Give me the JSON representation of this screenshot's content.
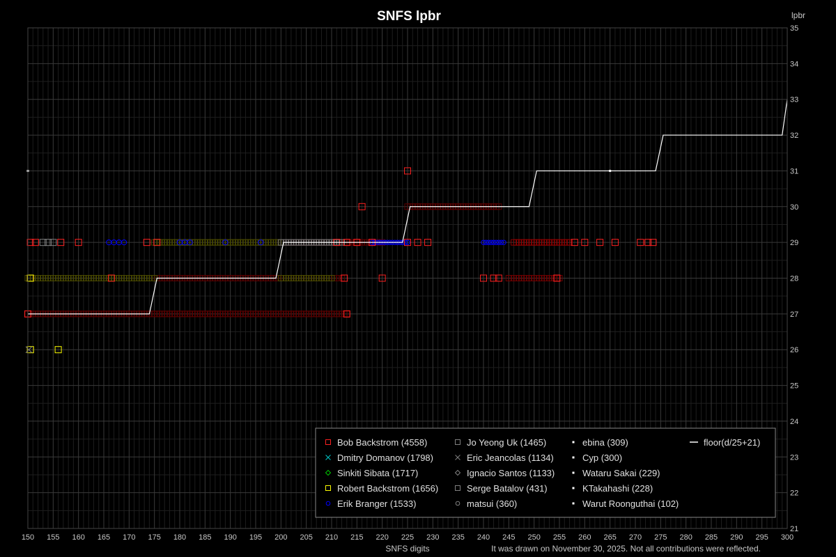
{
  "chart_data": {
    "type": "scatter",
    "title": "SNFS lpbr",
    "xlabel": "SNFS digits",
    "ylabel": "lpbr",
    "footnote": "It was drawn on November 30, 2025. Not all contributions were reflected.",
    "xlim": [
      150,
      300
    ],
    "ylim": [
      21,
      35
    ],
    "x_ticks": [
      150,
      155,
      160,
      165,
      170,
      175,
      180,
      185,
      190,
      195,
      200,
      205,
      210,
      215,
      220,
      225,
      230,
      235,
      240,
      245,
      250,
      255,
      260,
      265,
      270,
      275,
      280,
      285,
      290,
      295,
      300
    ],
    "y_ticks": [
      21,
      22,
      23,
      24,
      25,
      26,
      27,
      28,
      29,
      30,
      31,
      32,
      33,
      34,
      35
    ],
    "grid": true,
    "legend_position": "bottom-right",
    "colors": {
      "background": "#000000",
      "grid_major": "#3a3a3a",
      "grid_minor": "#1e1e1e",
      "dark_red": "#5a0000",
      "olive": "#4a4a00",
      "blue": "#0000ff",
      "white": "#ffffff"
    },
    "series": [
      {
        "name": "Bob Backstrom (4558)",
        "marker": "square",
        "color": "#ff2020",
        "ranges": [
          {
            "y": 27,
            "x": [
              150,
              213
            ],
            "color": "#5a0000"
          },
          {
            "y": 28,
            "x": [
              175,
              212
            ],
            "color": "#5a0000"
          },
          {
            "y": 28,
            "x": [
              245,
              255
            ],
            "color": "#700000"
          },
          {
            "y": 29,
            "x": [
              200,
              220
            ],
            "color": "#5a0000"
          },
          {
            "y": 29,
            "x": [
              246,
              257
            ],
            "color": "#900000"
          },
          {
            "y": 30,
            "x": [
              225,
              243
            ],
            "color": "#5a0000"
          }
        ],
        "points": [
          [
            150.5,
            29
          ],
          [
            151.5,
            29
          ],
          [
            156.5,
            29
          ],
          [
            160,
            29
          ],
          [
            173.5,
            29
          ],
          [
            175.5,
            29
          ],
          [
            166.5,
            28
          ],
          [
            150.5,
            28
          ],
          [
            212.5,
            28
          ],
          [
            220,
            28
          ],
          [
            240,
            28
          ],
          [
            242,
            28
          ],
          [
            243,
            28
          ],
          [
            254.5,
            28
          ],
          [
            211,
            29
          ],
          [
            213,
            29
          ],
          [
            215,
            29
          ],
          [
            218,
            29
          ],
          [
            225,
            29
          ],
          [
            227,
            29
          ],
          [
            229,
            29
          ],
          [
            258,
            29
          ],
          [
            260,
            29
          ],
          [
            263,
            29
          ],
          [
            266,
            29
          ],
          [
            271,
            29
          ],
          [
            272.5,
            29
          ],
          [
            273.5,
            29
          ],
          [
            216,
            30
          ],
          [
            225,
            31
          ],
          [
            150,
            27
          ],
          [
            213,
            27
          ]
        ]
      },
      {
        "name": "Dmitry Domanov (1798)",
        "marker": "x",
        "color": "#00c8c8",
        "points": []
      },
      {
        "name": "Sinkiti Sibata (1717)",
        "marker": "diamond",
        "color": "#00c800",
        "points": []
      },
      {
        "name": "Robert Backstrom (1656)",
        "marker": "square",
        "color": "#ffff00",
        "ranges": [
          {
            "y": 28,
            "x": [
              150,
              175
            ],
            "color": "#4a4a00"
          },
          {
            "y": 29,
            "x": [
              175,
              200
            ],
            "color": "#4a4a00"
          },
          {
            "y": 28,
            "x": [
              200,
              210
            ],
            "color": "#4a4a00"
          }
        ],
        "points": [
          [
            150.5,
            26
          ],
          [
            156,
            26
          ],
          [
            150.5,
            28
          ]
        ]
      },
      {
        "name": "Erik Branger (1533)",
        "marker": "circle",
        "color": "#0000ff",
        "ranges": [
          {
            "y": 29,
            "x": [
              240,
              244
            ],
            "color": "#0000ff"
          },
          {
            "y": 29,
            "x": [
              218,
              225
            ],
            "color": "#0000ff"
          }
        ],
        "points": [
          [
            166,
            29
          ],
          [
            167,
            29
          ],
          [
            168,
            29
          ],
          [
            169,
            29
          ],
          [
            180,
            29
          ],
          [
            181,
            29
          ],
          [
            182,
            29
          ],
          [
            189,
            29
          ],
          [
            196,
            29
          ]
        ]
      },
      {
        "name": "Jo Yeong Uk (1465)",
        "marker": "square",
        "color": "#808080",
        "ranges": [
          {
            "y": 29,
            "x": [
              200,
              212
            ],
            "color": "#707070"
          }
        ],
        "points": [
          [
            153,
            29
          ],
          [
            154,
            29
          ],
          [
            155,
            29
          ]
        ]
      },
      {
        "name": "Eric Jeancolas (1134)",
        "marker": "x",
        "color": "#808080",
        "points": [
          [
            150.2,
            26
          ]
        ]
      },
      {
        "name": "Ignacio Santos (1133)",
        "marker": "diamond",
        "color": "#808080",
        "points": []
      },
      {
        "name": "Serge Batalov (431)",
        "marker": "square",
        "color": "#808080",
        "points": []
      },
      {
        "name": "matsui (360)",
        "marker": "circle",
        "color": "#808080",
        "points": []
      },
      {
        "name": "ebina (309)",
        "marker": "dot",
        "color": "#ffffff",
        "points": [
          [
            150,
            31
          ],
          [
            265,
            31
          ]
        ]
      },
      {
        "name": "Cyp (300)",
        "marker": "dot",
        "color": "#ffffff",
        "points": []
      },
      {
        "name": "Wataru Sakai (229)",
        "marker": "dot",
        "color": "#ffffff",
        "points": []
      },
      {
        "name": "KTakahashi (228)",
        "marker": "dot",
        "color": "#ffffff",
        "points": []
      },
      {
        "name": "Warut Roonguthai (102)",
        "marker": "dot",
        "color": "#ffffff",
        "points": []
      },
      {
        "name": "floor(d/25+21)",
        "marker": "line",
        "color": "#ffffff",
        "line": [
          [
            150,
            27
          ],
          [
            174,
            27
          ],
          [
            175.5,
            28
          ],
          [
            199,
            28
          ],
          [
            200.5,
            29
          ],
          [
            224,
            29
          ],
          [
            225.5,
            30
          ],
          [
            249,
            30
          ],
          [
            250.5,
            31
          ],
          [
            274,
            31
          ],
          [
            275.5,
            32
          ],
          [
            299,
            32
          ],
          [
            300,
            33
          ]
        ]
      }
    ]
  }
}
